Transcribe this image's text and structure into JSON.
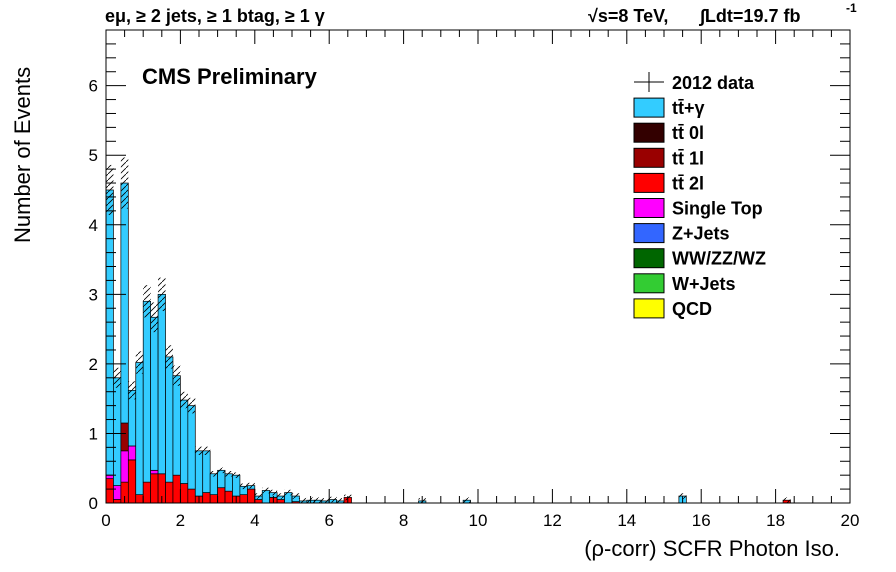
{
  "header": {
    "selection": "eμ, ≥ 2 jets, ≥ 1 btag, ≥ 1 γ",
    "energy": "√s=8 TeV,",
    "lumi": "∫Ldt=19.7 fb",
    "lumi_exp": "-1"
  },
  "colors": {
    "ttgamma": "#33ccff",
    "tt0l": "#330000",
    "tt1l": "#990000",
    "tt2l": "#ff0000",
    "singletop": "#ff00ff",
    "zjets": "#3366ff",
    "vv": "#006600",
    "wjets": "#33cc33",
    "qcd": "#ffff00"
  },
  "chart_data": {
    "type": "bar",
    "title": "CMS Preliminary",
    "xlabel": "(ρ-corr) SCFR Photon Iso.",
    "ylabel": "Number of Events",
    "xlim": [
      0,
      20
    ],
    "ylim": [
      0,
      6.8
    ],
    "xticks": [
      "0",
      "2",
      "4",
      "6",
      "8",
      "10",
      "12",
      "14",
      "16",
      "18",
      "20"
    ],
    "yticks": [
      "0",
      "1",
      "2",
      "3",
      "4",
      "5",
      "6"
    ],
    "bin_width": 0.2,
    "legend": [
      {
        "label": "2012 data",
        "kind": "data",
        "color": "#000000"
      },
      {
        "label": "tt̄+γ",
        "kind": "box",
        "color": "#33ccff"
      },
      {
        "label": "tt̄ 0l",
        "kind": "box",
        "color": "#330000"
      },
      {
        "label": "tt̄ 1l",
        "kind": "box",
        "color": "#990000"
      },
      {
        "label": "tt̄ 2l",
        "kind": "box",
        "color": "#ff0000"
      },
      {
        "label": "Single Top",
        "kind": "box",
        "color": "#ff00ff"
      },
      {
        "label": "Z+Jets",
        "kind": "box",
        "color": "#3366ff"
      },
      {
        "label": "WW/ZZ/WZ",
        "kind": "box",
        "color": "#006600"
      },
      {
        "label": "W+Jets",
        "kind": "box",
        "color": "#33cc33"
      },
      {
        "label": "QCD",
        "kind": "box",
        "color": "#ffff00"
      }
    ],
    "x": [
      0.1,
      0.3,
      0.5,
      0.7,
      0.9,
      1.1,
      1.3,
      1.5,
      1.7,
      1.9,
      2.1,
      2.3,
      2.5,
      2.7,
      2.9,
      3.1,
      3.3,
      3.5,
      3.7,
      3.9,
      4.1,
      4.3,
      4.5,
      4.7,
      4.9,
      5.1,
      5.3,
      5.5,
      5.7,
      5.9,
      6.1,
      6.3,
      6.5,
      8.5,
      9.7,
      15.5,
      18.3
    ],
    "series": [
      {
        "name": "tt̄ 2l",
        "color": "#ff0000",
        "values": [
          0.35,
          0.05,
          0.3,
          0.62,
          0.12,
          0.3,
          0.42,
          0.42,
          0.3,
          0.4,
          0.28,
          0.2,
          0.1,
          0.15,
          0.12,
          0.22,
          0.17,
          0.1,
          0.12,
          0.2,
          0.05,
          0.0,
          0.08,
          0.05,
          0.0,
          0.02,
          0.0,
          0.0,
          0.0,
          0.0,
          0.0,
          0.0,
          0.08,
          0.0,
          0.0,
          0.0,
          0.04
        ]
      },
      {
        "name": "Single Top",
        "color": "#ff00ff",
        "values": [
          0.05,
          0.2,
          0.45,
          0.2,
          0.0,
          0.0,
          0.05,
          0.0,
          0.0,
          0.0,
          0.0,
          0.0,
          0.0,
          0.0,
          0.0,
          0.0,
          0.0,
          0.0,
          0.0,
          0.0,
          0.0,
          0.0,
          0.0,
          0.0,
          0.0,
          0.0,
          0.0,
          0.0,
          0.0,
          0.0,
          0.0,
          0.0,
          0.0,
          0.0,
          0.0,
          0.0,
          0.0
        ]
      },
      {
        "name": "tt̄ 1l",
        "color": "#990000",
        "values": [
          0.0,
          0.0,
          0.4,
          0.0,
          0.0,
          0.0,
          0.0,
          0.0,
          0.0,
          0.0,
          0.0,
          0.0,
          0.0,
          0.0,
          0.0,
          0.0,
          0.0,
          0.0,
          0.0,
          0.0,
          0.0,
          0.0,
          0.0,
          0.0,
          0.0,
          0.0,
          0.0,
          0.0,
          0.0,
          0.0,
          0.0,
          0.0,
          0.0,
          0.0,
          0.0,
          0.0,
          0.0
        ]
      },
      {
        "name": "tt̄+γ",
        "color": "#33ccff",
        "values": [
          4.1,
          1.55,
          3.45,
          0.8,
          1.9,
          2.6,
          2.2,
          2.58,
          1.8,
          1.43,
          1.2,
          1.2,
          0.65,
          0.6,
          0.3,
          0.25,
          0.25,
          0.3,
          0.12,
          0.05,
          0.05,
          0.18,
          0.07,
          0.05,
          0.15,
          0.08,
          0.03,
          0.04,
          0.04,
          0.03,
          0.05,
          0.03,
          0.0,
          0.03,
          0.04,
          0.1,
          0.0
        ]
      }
    ],
    "band_total": [
      4.5,
      1.8,
      4.6,
      1.62,
      2.02,
      2.9,
      2.67,
      3.0,
      2.1,
      1.83,
      1.48,
      1.4,
      0.75,
      0.75,
      0.42,
      0.47,
      0.42,
      0.4,
      0.24,
      0.25,
      0.1,
      0.18,
      0.15,
      0.1,
      0.15,
      0.1,
      0.03,
      0.04,
      0.04,
      0.03,
      0.05,
      0.03,
      0.08,
      0.03,
      0.04,
      0.1,
      0.04
    ]
  }
}
